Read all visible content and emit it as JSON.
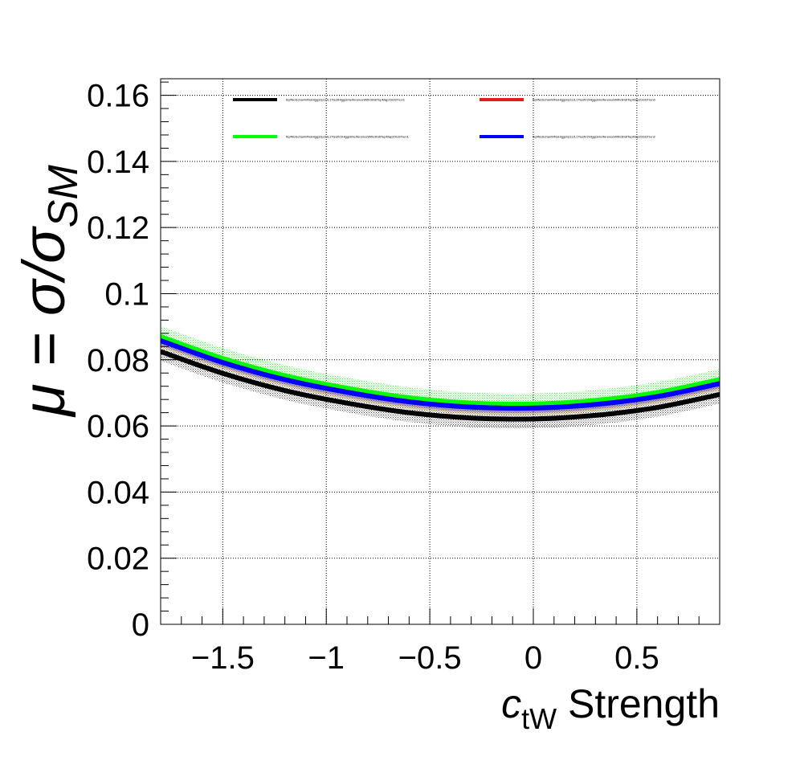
{
  "chart_data": {
    "type": "line",
    "xlabel": {
      "symbol": "c",
      "subscript": "tW",
      "suffix": " Strength"
    },
    "ylabel": {
      "prefix": "μ = σ/σ",
      "subscript": "SM"
    },
    "xlim": [
      -1.8,
      0.9
    ],
    "ylim": [
      0,
      0.165
    ],
    "x_ticks": [
      -1.5,
      -1,
      -0.5,
      0,
      0.5
    ],
    "x_tick_labels": [
      "−1.5",
      "−1",
      "−0.5",
      "0",
      "0.5"
    ],
    "y_ticks": [
      0,
      0.02,
      0.04,
      0.06,
      0.08,
      0.1,
      0.12,
      0.14,
      0.16
    ],
    "y_tick_labels": [
      "0",
      "0.02",
      "0.04",
      "0.06",
      "0.08",
      "0.1",
      "0.12",
      "0.14",
      "0.16"
    ],
    "grid": true,
    "legend_position": "top",
    "x": [
      -1.8,
      -1.5,
      -1.2,
      -0.9,
      -0.6,
      -0.3,
      0.0,
      0.3,
      0.6,
      0.9
    ],
    "series": [
      {
        "name": "ttq4NoSchanWNoHiggs0p1UL17testHiggsInterferenceWithdim6TopMap20GSTrun1",
        "color": "#000000",
        "values": [
          0.0825,
          0.0759,
          0.0707,
          0.0669,
          0.064,
          0.0624,
          0.0621,
          0.0632,
          0.0656,
          0.0695
        ],
        "band": 0.0028
      },
      {
        "name": "ttq4NoSchanWNoHiggs0p1UL17testV2HiggsInterferenceWithdim6TopMap20GSTrun0",
        "color": "#e31a1c",
        "values": [
          0.0858,
          0.0792,
          0.074,
          0.0702,
          0.0673,
          0.0657,
          0.0654,
          0.0665,
          0.0689,
          0.0728
        ],
        "band": 0.002
      },
      {
        "name": "ttq4NoSchanWNoHiggs0p1UL17testV2HiggsInterferenceWithdim6TopMap20GSTrun1",
        "color": "#00ff00",
        "values": [
          0.087,
          0.0804,
          0.0752,
          0.0714,
          0.0685,
          0.0669,
          0.0666,
          0.0677,
          0.0701,
          0.074
        ],
        "band": 0.0032
      },
      {
        "name": "ttq4NoSchanWNoHiggs0p1UL17testV2HiggsInterferenceWithdim6TopMap20GSTrun2",
        "color": "#0000ff",
        "values": [
          0.0858,
          0.0792,
          0.074,
          0.0702,
          0.0673,
          0.0657,
          0.0654,
          0.0665,
          0.0689,
          0.0728
        ],
        "band": 0.0014
      }
    ]
  }
}
